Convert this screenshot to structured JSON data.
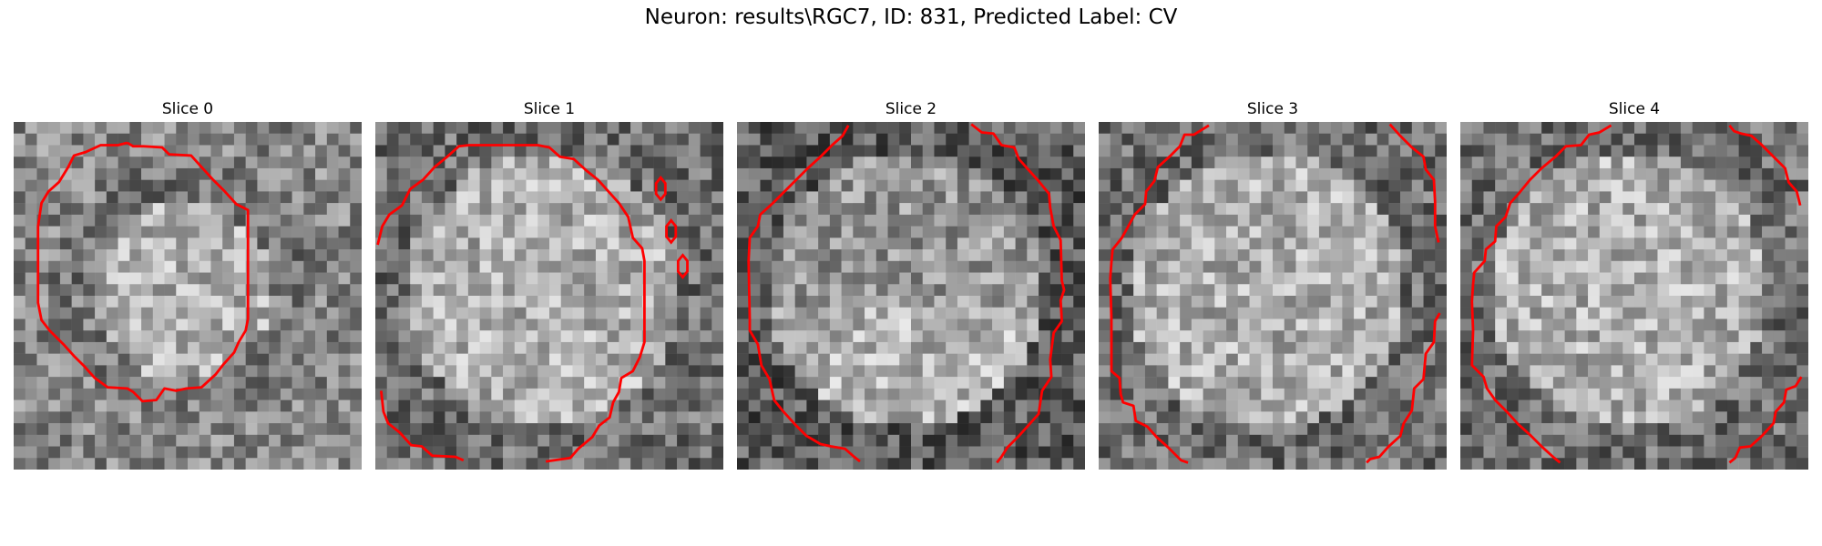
{
  "figure": {
    "title": "Neuron: results\\RGC7, ID: 831, Predicted Label: CV",
    "contour_color": "#ff0000",
    "colormap": "gray",
    "panels": [
      {
        "title": "Slice 0",
        "seed": 11,
        "tone": "dark-ring"
      },
      {
        "title": "Slice 1",
        "seed": 23,
        "tone": "bright"
      },
      {
        "title": "Slice 2",
        "seed": 37,
        "tone": "mixed"
      },
      {
        "title": "Slice 3",
        "seed": 41,
        "tone": "bright"
      },
      {
        "title": "Slice 4",
        "seed": 53,
        "tone": "bright"
      }
    ]
  }
}
